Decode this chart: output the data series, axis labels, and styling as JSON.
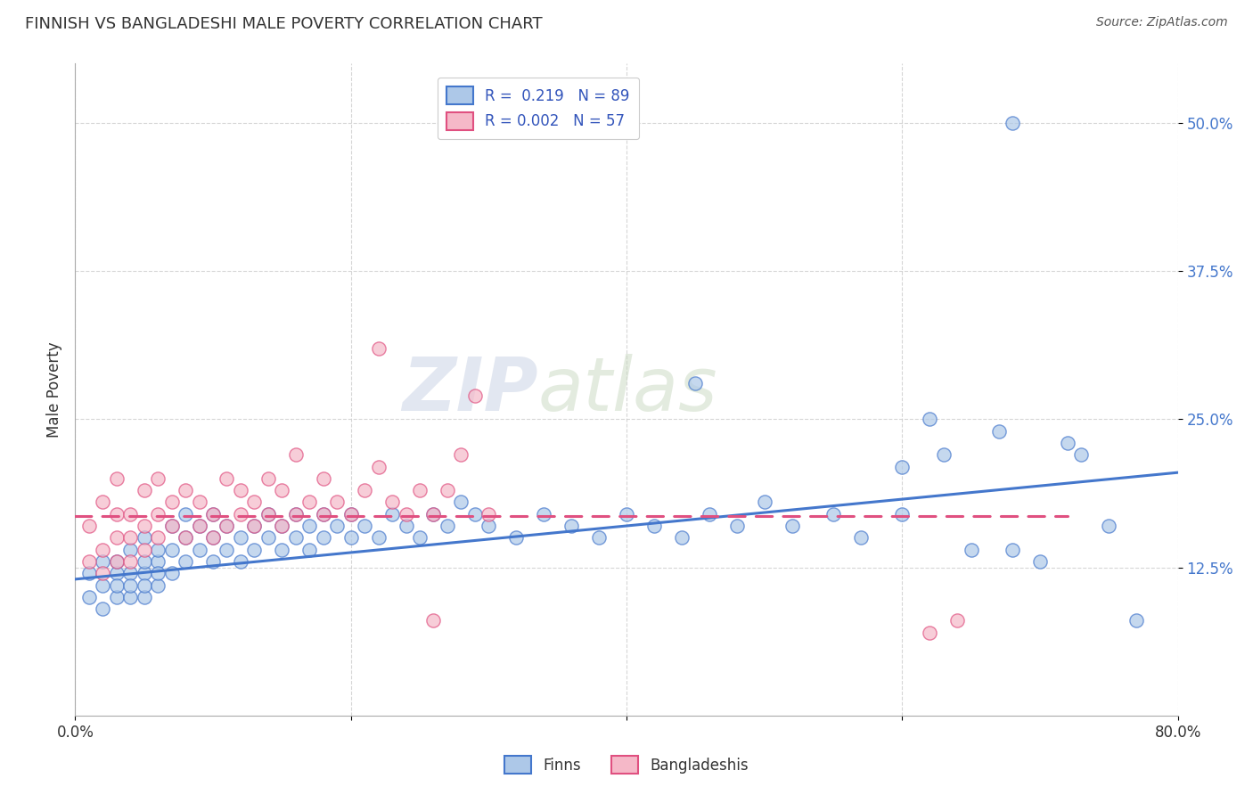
{
  "title": "FINNISH VS BANGLADESHI MALE POVERTY CORRELATION CHART",
  "source": "Source: ZipAtlas.com",
  "ylabel": "Male Poverty",
  "xlim": [
    0.0,
    0.8
  ],
  "ylim": [
    0.0,
    0.55
  ],
  "xticks": [
    0.0,
    0.2,
    0.4,
    0.6,
    0.8
  ],
  "xtick_labels": [
    "0.0%",
    "",
    "",
    "",
    "80.0%"
  ],
  "yticks": [
    0.125,
    0.25,
    0.375,
    0.5
  ],
  "ytick_labels": [
    "12.5%",
    "25.0%",
    "37.5%",
    "50.0%"
  ],
  "legend_R1": "R =  0.219",
  "legend_N1": "N = 89",
  "legend_R2": "R = 0.002",
  "legend_N2": "N = 57",
  "color_finn": "#adc8e8",
  "color_bang": "#f5b8c8",
  "color_finn_line": "#4477cc",
  "color_bang_line": "#e05080",
  "watermark_zip": "ZIP",
  "watermark_atlas": "atlas",
  "finn_line_x0": 0.0,
  "finn_line_x1": 0.8,
  "finn_line_y0": 0.115,
  "finn_line_y1": 0.205,
  "bang_line_x0": 0.0,
  "bang_line_x1": 0.72,
  "bang_line_y0": 0.168,
  "bang_line_y1": 0.168,
  "finns_x": [
    0.01,
    0.01,
    0.02,
    0.02,
    0.02,
    0.03,
    0.03,
    0.03,
    0.03,
    0.04,
    0.04,
    0.04,
    0.04,
    0.05,
    0.05,
    0.05,
    0.05,
    0.05,
    0.06,
    0.06,
    0.06,
    0.06,
    0.07,
    0.07,
    0.07,
    0.08,
    0.08,
    0.08,
    0.09,
    0.09,
    0.1,
    0.1,
    0.1,
    0.11,
    0.11,
    0.12,
    0.12,
    0.13,
    0.13,
    0.14,
    0.14,
    0.15,
    0.15,
    0.16,
    0.16,
    0.17,
    0.17,
    0.18,
    0.18,
    0.19,
    0.2,
    0.2,
    0.21,
    0.22,
    0.23,
    0.24,
    0.25,
    0.26,
    0.27,
    0.28,
    0.29,
    0.3,
    0.32,
    0.34,
    0.36,
    0.38,
    0.4,
    0.42,
    0.44,
    0.46,
    0.48,
    0.5,
    0.52,
    0.55,
    0.57,
    0.6,
    0.63,
    0.65,
    0.67,
    0.68,
    0.7,
    0.72,
    0.73,
    0.75,
    0.77,
    0.6,
    0.62,
    0.68,
    0.45
  ],
  "finns_y": [
    0.1,
    0.12,
    0.09,
    0.11,
    0.13,
    0.1,
    0.12,
    0.11,
    0.13,
    0.1,
    0.12,
    0.11,
    0.14,
    0.1,
    0.12,
    0.11,
    0.13,
    0.15,
    0.11,
    0.13,
    0.12,
    0.14,
    0.12,
    0.14,
    0.16,
    0.13,
    0.15,
    0.17,
    0.14,
    0.16,
    0.13,
    0.15,
    0.17,
    0.14,
    0.16,
    0.13,
    0.15,
    0.14,
    0.16,
    0.15,
    0.17,
    0.14,
    0.16,
    0.15,
    0.17,
    0.14,
    0.16,
    0.15,
    0.17,
    0.16,
    0.15,
    0.17,
    0.16,
    0.15,
    0.17,
    0.16,
    0.15,
    0.17,
    0.16,
    0.18,
    0.17,
    0.16,
    0.15,
    0.17,
    0.16,
    0.15,
    0.17,
    0.16,
    0.15,
    0.17,
    0.16,
    0.18,
    0.16,
    0.17,
    0.15,
    0.17,
    0.22,
    0.14,
    0.24,
    0.14,
    0.13,
    0.23,
    0.22,
    0.16,
    0.08,
    0.21,
    0.25,
    0.5,
    0.28
  ],
  "bang_x": [
    0.01,
    0.01,
    0.02,
    0.02,
    0.02,
    0.03,
    0.03,
    0.03,
    0.03,
    0.04,
    0.04,
    0.04,
    0.05,
    0.05,
    0.05,
    0.06,
    0.06,
    0.06,
    0.07,
    0.07,
    0.08,
    0.08,
    0.09,
    0.09,
    0.1,
    0.1,
    0.11,
    0.11,
    0.12,
    0.12,
    0.13,
    0.13,
    0.14,
    0.14,
    0.15,
    0.15,
    0.16,
    0.16,
    0.17,
    0.18,
    0.18,
    0.19,
    0.2,
    0.21,
    0.22,
    0.23,
    0.24,
    0.25,
    0.26,
    0.27,
    0.28,
    0.29,
    0.3,
    0.22,
    0.26,
    0.62,
    0.64
  ],
  "bang_y": [
    0.13,
    0.16,
    0.14,
    0.18,
    0.12,
    0.15,
    0.17,
    0.13,
    0.2,
    0.15,
    0.17,
    0.13,
    0.16,
    0.14,
    0.19,
    0.15,
    0.17,
    0.2,
    0.16,
    0.18,
    0.15,
    0.19,
    0.16,
    0.18,
    0.15,
    0.17,
    0.16,
    0.2,
    0.17,
    0.19,
    0.16,
    0.18,
    0.17,
    0.2,
    0.16,
    0.19,
    0.17,
    0.22,
    0.18,
    0.17,
    0.2,
    0.18,
    0.17,
    0.19,
    0.21,
    0.18,
    0.17,
    0.19,
    0.17,
    0.19,
    0.22,
    0.27,
    0.17,
    0.31,
    0.08,
    0.07,
    0.08
  ]
}
